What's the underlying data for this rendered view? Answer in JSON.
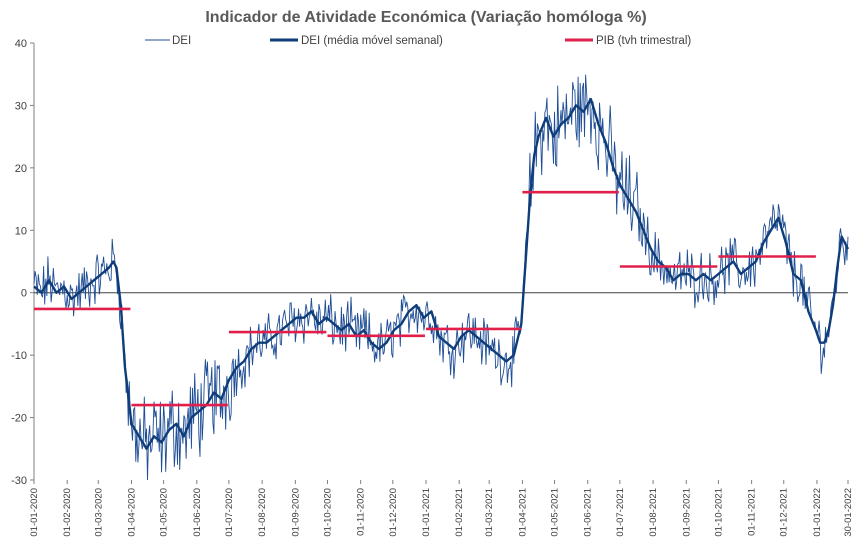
{
  "chart_data": {
    "type": "line",
    "title": "Indicador de Atividade Económica (Variação homóloga %)",
    "ylim": [
      -30,
      40
    ],
    "yticks": [
      40,
      30,
      20,
      10,
      0,
      -10,
      -20,
      -30
    ],
    "xlim": [
      "2020-01-01",
      "2022-01-30"
    ],
    "xtick_labels": [
      "01-01-2020",
      "01-02-2020",
      "01-03-2020",
      "01-04-2020",
      "01-05-2020",
      "01-06-2020",
      "01-07-2020",
      "01-08-2020",
      "01-09-2020",
      "01-10-2020",
      "01-11-2020",
      "01-12-2020",
      "01-01-2021",
      "01-02-2021",
      "01-03-2021",
      "01-04-2021",
      "01-05-2021",
      "01-06-2021",
      "01-07-2021",
      "01-08-2021",
      "01-09-2021",
      "01-10-2021",
      "01-11-2021",
      "01-12-2021",
      "01-01-2022",
      "30-01-2022"
    ],
    "legend": [
      "DEI",
      "DEI (média móvel semanal)",
      "PIB (tvh trimestral)"
    ],
    "colors": {
      "dei": "#1f4e96",
      "dei_ma": "#0e3d7a",
      "pib": "#e0204a",
      "axis": "#7f7f7f"
    },
    "series": [
      {
        "name": "DEI (média móvel semanal)",
        "x": [
          "2020-01-01",
          "2020-01-08",
          "2020-01-15",
          "2020-01-22",
          "2020-01-29",
          "2020-02-05",
          "2020-02-12",
          "2020-02-19",
          "2020-02-26",
          "2020-03-04",
          "2020-03-11",
          "2020-03-15",
          "2020-03-18",
          "2020-03-22",
          "2020-03-26",
          "2020-04-01",
          "2020-04-08",
          "2020-04-15",
          "2020-04-22",
          "2020-04-29",
          "2020-05-06",
          "2020-05-13",
          "2020-05-20",
          "2020-05-27",
          "2020-06-03",
          "2020-06-10",
          "2020-06-17",
          "2020-06-24",
          "2020-07-01",
          "2020-07-08",
          "2020-07-15",
          "2020-07-22",
          "2020-07-29",
          "2020-08-05",
          "2020-08-12",
          "2020-08-19",
          "2020-08-26",
          "2020-09-02",
          "2020-09-09",
          "2020-09-16",
          "2020-09-23",
          "2020-09-30",
          "2020-10-07",
          "2020-10-14",
          "2020-10-21",
          "2020-10-28",
          "2020-11-04",
          "2020-11-11",
          "2020-11-18",
          "2020-11-25",
          "2020-12-02",
          "2020-12-09",
          "2020-12-16",
          "2020-12-23",
          "2020-12-30",
          "2021-01-06",
          "2021-01-13",
          "2021-01-20",
          "2021-01-27",
          "2021-02-03",
          "2021-02-10",
          "2021-02-17",
          "2021-02-24",
          "2021-03-03",
          "2021-03-10",
          "2021-03-17",
          "2021-03-24",
          "2021-03-31",
          "2021-04-04",
          "2021-04-08",
          "2021-04-12",
          "2021-04-16",
          "2021-04-23",
          "2021-04-30",
          "2021-05-07",
          "2021-05-14",
          "2021-05-21",
          "2021-05-28",
          "2021-06-04",
          "2021-06-11",
          "2021-06-18",
          "2021-06-25",
          "2021-07-02",
          "2021-07-09",
          "2021-07-16",
          "2021-07-23",
          "2021-07-30",
          "2021-08-06",
          "2021-08-13",
          "2021-08-20",
          "2021-08-27",
          "2021-09-03",
          "2021-09-10",
          "2021-09-17",
          "2021-09-24",
          "2021-10-01",
          "2021-10-08",
          "2021-10-15",
          "2021-10-22",
          "2021-10-29",
          "2021-11-05",
          "2021-11-12",
          "2021-11-19",
          "2021-11-26",
          "2021-12-03",
          "2021-12-10",
          "2021-12-17",
          "2021-12-24",
          "2021-12-31",
          "2022-01-04",
          "2022-01-08",
          "2022-01-12",
          "2022-01-16",
          "2022-01-20",
          "2022-01-24",
          "2022-01-30"
        ],
        "values": [
          1,
          0,
          2,
          0,
          1,
          -1,
          0,
          1,
          2,
          3,
          4,
          5,
          4,
          -2,
          -12,
          -21,
          -23,
          -25,
          -23,
          -24,
          -22,
          -21,
          -23,
          -20,
          -19,
          -18,
          -16,
          -17,
          -14,
          -12,
          -11,
          -9,
          -8,
          -8,
          -7,
          -6,
          -5,
          -4,
          -4,
          -3,
          -5,
          -4,
          -5,
          -6,
          -5,
          -7,
          -6,
          -8,
          -9,
          -8,
          -6,
          -5,
          -3,
          -2,
          -4,
          -3,
          -7,
          -8,
          -9,
          -7,
          -6,
          -7,
          -8,
          -9,
          -10,
          -11,
          -10,
          -5,
          5,
          15,
          22,
          25,
          28,
          25,
          27,
          28,
          30,
          29,
          31,
          27,
          24,
          20,
          17,
          15,
          13,
          10,
          7,
          5,
          4,
          2,
          3,
          3,
          2,
          3,
          2,
          3,
          4,
          5,
          3,
          4,
          5,
          8,
          10,
          12,
          8,
          3,
          2,
          -3,
          -6,
          -8,
          -8,
          -6,
          -2,
          4,
          9,
          7
        ]
      },
      {
        "name": "PIB (tvh trimestral)",
        "segments": [
          {
            "x": [
              "2020-01-01",
              "2020-03-31"
            ],
            "value": -2.6
          },
          {
            "x": [
              "2020-04-01",
              "2020-06-30"
            ],
            "value": -18
          },
          {
            "x": [
              "2020-07-01",
              "2020-09-30"
            ],
            "value": -6.3
          },
          {
            "x": [
              "2020-10-01",
              "2020-12-31"
            ],
            "value": -6.9
          },
          {
            "x": [
              "2021-01-01",
              "2021-03-31"
            ],
            "value": -5.8
          },
          {
            "x": [
              "2021-04-01",
              "2021-06-30"
            ],
            "value": 16.1
          },
          {
            "x": [
              "2021-07-01",
              "2021-09-30"
            ],
            "value": 4.2
          },
          {
            "x": [
              "2021-10-01",
              "2021-12-31"
            ],
            "value": 5.8
          }
        ]
      }
    ]
  }
}
